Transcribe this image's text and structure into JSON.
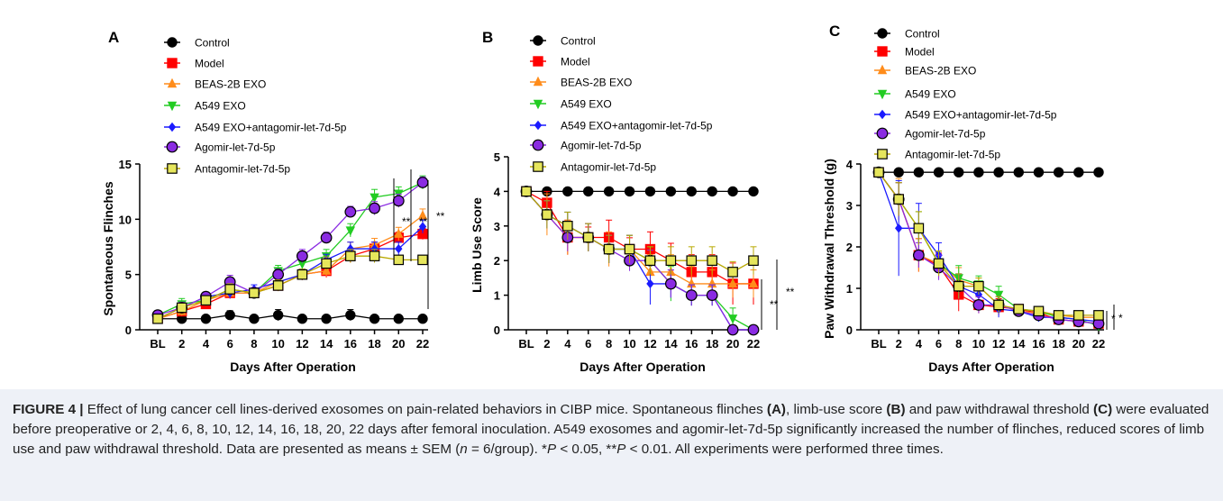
{
  "legend": {
    "Control": "Control",
    "Model": "Model",
    "BEAS": "BEAS-2B EXO",
    "A549": "A549 EXO",
    "A549ant": "A549 EXO+antagomir-let-7d-5p",
    "Ago": "Agomir-let-7d-5p",
    "Antago": "Antagomir-let-7d-5p"
  },
  "colors": {
    "Control": "#000000",
    "Model": "#ff0000",
    "BEAS": "#ff8c1a",
    "A549": "#22cc22",
    "A549ant": "#1a1aff",
    "Ago": "#8a2be2",
    "Antago": "#b8a800"
  },
  "chart_data": [
    {
      "type": "line",
      "panel": "A",
      "xlabel": "Days After Operation",
      "ylabel": "Spontaneous Flinches",
      "categories": [
        "BL",
        "2",
        "4",
        "6",
        "8",
        "10",
        "12",
        "14",
        "16",
        "18",
        "20",
        "22"
      ],
      "ylim": [
        0,
        15
      ],
      "yticks": [
        0,
        5,
        10,
        15
      ],
      "series": [
        {
          "key": "Control",
          "values": [
            1,
            1,
            1,
            1.33,
            1,
            1.33,
            1,
            1,
            1.33,
            1,
            1,
            1
          ],
          "err": [
            0.3,
            0.2,
            0.2,
            0.4,
            0.2,
            0.5,
            0.2,
            0.2,
            0.5,
            0.2,
            0.2,
            0.2
          ]
        },
        {
          "key": "Model",
          "values": [
            1,
            1.67,
            2.33,
            3.33,
            3.33,
            4,
            5,
            5.33,
            6.67,
            7.33,
            8.33,
            8.67
          ],
          "err": [
            0.4,
            0.4,
            0.4,
            0.5,
            0.4,
            0.5,
            0.5,
            0.6,
            0.6,
            0.6,
            0.5,
            0.5
          ]
        },
        {
          "key": "BEAS",
          "values": [
            1,
            1.67,
            2.67,
            3.33,
            3.33,
            4.33,
            5,
            5.33,
            7.33,
            7.67,
            8.67,
            10.33
          ],
          "err": [
            0.4,
            0.4,
            0.4,
            0.5,
            0.4,
            0.5,
            0.5,
            0.5,
            0.6,
            0.6,
            0.6,
            0.6
          ]
        },
        {
          "key": "A549",
          "values": [
            1.33,
            2.33,
            2.67,
            3.67,
            3.33,
            5.33,
            6,
            6.67,
            9,
            12,
            12.33,
            13.33
          ],
          "err": [
            0.4,
            0.5,
            0.5,
            0.5,
            0.5,
            0.5,
            0.6,
            0.6,
            0.6,
            0.7,
            0.6,
            0.6
          ]
        },
        {
          "key": "A549ant",
          "values": [
            1,
            2,
            3,
            3.33,
            3.67,
            4.33,
            5,
            6.33,
            7.33,
            7.33,
            7.33,
            9.33
          ],
          "err": [
            0.4,
            0.4,
            0.4,
            0.5,
            0.4,
            0.5,
            0.5,
            0.5,
            0.6,
            0.6,
            0.6,
            0.6
          ]
        },
        {
          "key": "Ago",
          "values": [
            1.33,
            2,
            3,
            4.33,
            3.33,
            5,
            6.67,
            8.33,
            10.67,
            11,
            11.67,
            13.33
          ],
          "err": [
            0.4,
            0.5,
            0.4,
            0.6,
            0.5,
            0.5,
            0.6,
            0.5,
            0.5,
            0.6,
            0.6,
            0.5
          ]
        },
        {
          "key": "Antago",
          "values": [
            1,
            2,
            2.67,
            3.67,
            3.33,
            4,
            5,
            6,
            6.67,
            6.67,
            6.33,
            6.33
          ],
          "err": [
            0.4,
            0.4,
            0.4,
            0.5,
            0.4,
            0.5,
            0.5,
            0.6,
            0.6,
            0.6,
            0.4,
            0.3
          ]
        }
      ],
      "significance": [
        "**",
        "**",
        "**"
      ]
    },
    {
      "type": "line",
      "panel": "B",
      "xlabel": "Days After Operation",
      "ylabel": "Limb Use Score",
      "categories": [
        "BL",
        "2",
        "4",
        "6",
        "8",
        "10",
        "12",
        "14",
        "16",
        "18",
        "20",
        "22"
      ],
      "ylim": [
        0,
        5
      ],
      "yticks": [
        0,
        1,
        2,
        3,
        4,
        5
      ],
      "series": [
        {
          "key": "Control",
          "values": [
            4,
            4,
            4,
            4,
            4,
            4,
            4,
            4,
            4,
            4,
            4,
            4
          ],
          "err": [
            0,
            0,
            0,
            0,
            0,
            0,
            0,
            0,
            0,
            0,
            0,
            0
          ]
        },
        {
          "key": "Model",
          "values": [
            4,
            3.67,
            2.67,
            2.67,
            2.67,
            2.33,
            2.33,
            2,
            1.67,
            1.67,
            1.33,
            1.33
          ],
          "err": [
            0,
            0.33,
            0.5,
            0.3,
            0.5,
            0.33,
            0.5,
            0.5,
            0.5,
            0.5,
            0.6,
            0.6
          ]
        },
        {
          "key": "BEAS",
          "values": [
            4,
            3.33,
            2.67,
            2.67,
            2.33,
            2.33,
            1.67,
            1.67,
            1.33,
            1.33,
            1.33,
            1.33
          ],
          "err": [
            0,
            0.6,
            0.5,
            0.4,
            0.5,
            0.4,
            0.5,
            0.5,
            0.5,
            0.4,
            0.4,
            0.4
          ]
        },
        {
          "key": "A549",
          "values": [
            4,
            3.33,
            3,
            2.67,
            2.33,
            2.33,
            2,
            1.33,
            1,
            1,
            0.33,
            0
          ],
          "err": [
            0,
            0.4,
            0.4,
            0.4,
            0.4,
            0.4,
            0.4,
            0.5,
            0.3,
            0.3,
            0.3,
            0
          ]
        },
        {
          "key": "A549ant",
          "values": [
            4,
            3.33,
            3,
            2.67,
            2.33,
            2.33,
            1.33,
            1.33,
            1,
            1,
            0,
            0
          ],
          "err": [
            0,
            0.4,
            0.4,
            0.4,
            0.4,
            0.4,
            0.6,
            0.4,
            0.3,
            0.3,
            0,
            0
          ]
        },
        {
          "key": "Ago",
          "values": [
            4,
            3.33,
            2.67,
            2.67,
            2.33,
            2,
            2,
            1.33,
            1,
            1,
            0,
            0
          ],
          "err": [
            0,
            0.4,
            0.4,
            0.4,
            0.4,
            0.3,
            0.3,
            0.4,
            0.3,
            0.3,
            0,
            0
          ]
        },
        {
          "key": "Antago",
          "values": [
            4,
            3.33,
            3,
            2.67,
            2.33,
            2.33,
            2,
            2,
            2,
            2,
            1.67,
            2
          ],
          "err": [
            0,
            0.4,
            0.4,
            0.4,
            0.4,
            0.4,
            0.4,
            0.4,
            0.4,
            0.4,
            0.3,
            0.4
          ]
        }
      ],
      "significance": [
        "**",
        "**"
      ]
    },
    {
      "type": "line",
      "panel": "C",
      "xlabel": "Days After Operation",
      "ylabel": "Paw Withdrawal Threshold (g)",
      "categories": [
        "BL",
        "2",
        "4",
        "6",
        "8",
        "10",
        "12",
        "14",
        "16",
        "18",
        "20",
        "22"
      ],
      "ylim": [
        0,
        4
      ],
      "yticks": [
        0,
        1,
        2,
        3,
        4
      ],
      "series": [
        {
          "key": "Control",
          "values": [
            3.8,
            3.8,
            3.8,
            3.8,
            3.8,
            3.8,
            3.8,
            3.8,
            3.8,
            3.8,
            3.8,
            3.8
          ],
          "err": [
            0,
            0,
            0,
            0,
            0,
            0,
            0,
            0,
            0,
            0,
            0,
            0
          ]
        },
        {
          "key": "Model",
          "values": [
            3.8,
            3.15,
            1.8,
            1.55,
            0.85,
            0.6,
            0.55,
            0.5,
            0.4,
            0.25,
            0.2,
            0.15
          ],
          "err": [
            0,
            0.4,
            0.4,
            0.3,
            0.4,
            0.2,
            0.2,
            0.1,
            0.1,
            0.1,
            0.1,
            0.1
          ]
        },
        {
          "key": "BEAS",
          "values": [
            3.8,
            3.15,
            1.8,
            1.6,
            1.2,
            1.05,
            0.6,
            0.45,
            0.4,
            0.35,
            0.3,
            0.3
          ],
          "err": [
            0,
            0.5,
            0.4,
            0.3,
            0.3,
            0.2,
            0.2,
            0.1,
            0.1,
            0.1,
            0.1,
            0.1
          ]
        },
        {
          "key": "A549",
          "values": [
            3.8,
            3.15,
            2.45,
            1.6,
            1.25,
            1.1,
            0.85,
            0.5,
            0.45,
            0.3,
            0.25,
            0.1
          ],
          "err": [
            0,
            0.4,
            0.4,
            0.3,
            0.3,
            0.2,
            0.2,
            0.1,
            0.1,
            0.1,
            0.1,
            0.05
          ]
        },
        {
          "key": "A549ant",
          "values": [
            3.8,
            2.45,
            2.45,
            1.8,
            1.05,
            0.85,
            0.5,
            0.45,
            0.3,
            0.3,
            0.25,
            0.2
          ],
          "err": [
            0,
            1.15,
            0.6,
            0.3,
            0.3,
            0.2,
            0.2,
            0.1,
            0.1,
            0.1,
            0.1,
            0.1
          ]
        },
        {
          "key": "Ago",
          "values": [
            3.8,
            3.15,
            1.8,
            1.5,
            1.05,
            0.6,
            0.6,
            0.45,
            0.35,
            0.25,
            0.2,
            0.15
          ],
          "err": [
            0,
            0.4,
            0.3,
            0.3,
            0.3,
            0.2,
            0.2,
            0.1,
            0.1,
            0.1,
            0.1,
            0.05
          ]
        },
        {
          "key": "Antago",
          "values": [
            3.8,
            3.15,
            2.45,
            1.6,
            1.05,
            1.05,
            0.6,
            0.5,
            0.45,
            0.35,
            0.35,
            0.35
          ],
          "err": [
            0,
            0.4,
            0.4,
            0.3,
            0.3,
            0.2,
            0.2,
            0.1,
            0.1,
            0.1,
            0.1,
            0.1
          ]
        }
      ],
      "significance": [
        "*",
        "*"
      ]
    }
  ],
  "caption": {
    "label": "FIGURE 4 |",
    "text1": " Effect of lung cancer cell lines-derived exosomes on pain-related behaviors in CIBP mice. Spontaneous flinches ",
    "refA": "(A)",
    "text2": ", limb-use score ",
    "refB": "(B)",
    "text3": " and paw withdrawal threshold ",
    "refC": "(C)",
    "text4": " were evaluated before preoperative or 2, 4, 6, 8, 10, 12, 14, 16, 18, 20, 22 days after femoral inoculation. A549 exosomes and agomir-let-7d-5p significantly increased the number of flinches, reduced scores of limb use and paw withdrawal threshold. Data are presented as means ± SEM (",
    "n": "n",
    "text5": " = 6/group). *",
    "p1": "P",
    "text6": " < 0.05, **",
    "p2": "P",
    "text7": " < 0.01. All experiments were performed three times."
  }
}
